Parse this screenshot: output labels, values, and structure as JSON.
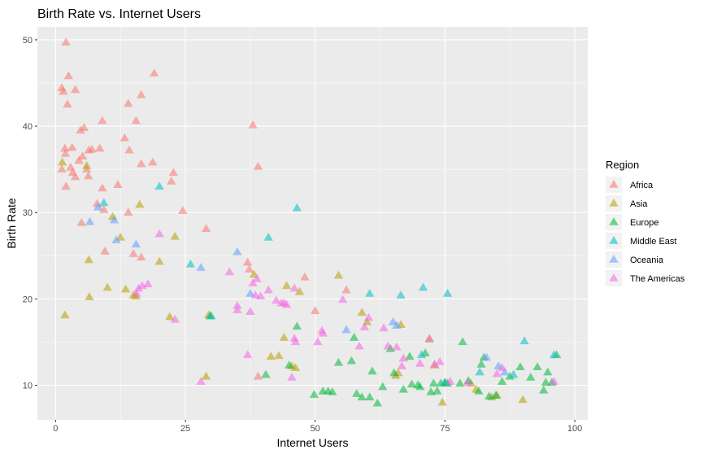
{
  "chart_data": {
    "type": "scatter",
    "title": "Birth Rate vs. Internet Users",
    "xlabel": "Internet Users",
    "ylabel": "Birth Rate",
    "xlim": [
      -3.5,
      102.5
    ],
    "ylim": [
      6,
      51.5
    ],
    "x_ticks": [
      0,
      25,
      50,
      75,
      100
    ],
    "y_ticks": [
      10,
      20,
      30,
      40,
      50
    ],
    "grid": true,
    "marker": "triangle",
    "legend": {
      "title": "Region",
      "placement": "right"
    },
    "series": [
      {
        "name": "Africa",
        "color": "#F8766D",
        "points": [
          [
            2,
            49.7
          ],
          [
            1.5,
            44
          ],
          [
            2.5,
            45.8
          ],
          [
            3.8,
            44.2
          ],
          [
            19,
            46.1
          ],
          [
            1.2,
            44.4
          ],
          [
            2.3,
            42.5
          ],
          [
            14,
            42.6
          ],
          [
            16.5,
            43.6
          ],
          [
            15.5,
            40.6
          ],
          [
            9,
            40.6
          ],
          [
            5.5,
            39.8
          ],
          [
            4.8,
            39.5
          ],
          [
            38,
            40.1
          ],
          [
            13.3,
            38.6
          ],
          [
            1.8,
            37.4
          ],
          [
            3.2,
            37.5
          ],
          [
            4.5,
            36
          ],
          [
            7,
            37.3
          ],
          [
            6.4,
            37.2
          ],
          [
            8.5,
            37.4
          ],
          [
            14.2,
            37.2
          ],
          [
            1.9,
            36.8
          ],
          [
            2.9,
            35.2
          ],
          [
            3.3,
            34.6
          ],
          [
            5.2,
            36.5
          ],
          [
            6,
            35
          ],
          [
            6.3,
            34.2
          ],
          [
            12,
            33.2
          ],
          [
            9,
            32.8
          ],
          [
            16.5,
            35.6
          ],
          [
            18.7,
            35.8
          ],
          [
            22.7,
            34.6
          ],
          [
            22.3,
            33.6
          ],
          [
            3.8,
            34.1
          ],
          [
            1.2,
            35
          ],
          [
            2,
            33
          ],
          [
            39,
            35.3
          ],
          [
            5,
            28.8
          ],
          [
            9.3,
            30.3
          ],
          [
            14,
            30
          ],
          [
            24.5,
            30.2
          ],
          [
            29,
            28.1
          ],
          [
            8,
            31
          ],
          [
            9.5,
            25.5
          ],
          [
            15,
            25.2
          ],
          [
            16.5,
            24.8
          ],
          [
            37,
            24.2
          ],
          [
            37.3,
            23.4
          ],
          [
            56,
            21
          ],
          [
            50,
            18.6
          ],
          [
            39,
            11
          ],
          [
            48,
            22.5
          ]
        ]
      },
      {
        "name": "Asia",
        "color": "#B79F00",
        "points": [
          [
            1.3,
            35.8
          ],
          [
            6,
            35.4
          ],
          [
            1.8,
            18.1
          ],
          [
            6.4,
            24.5
          ],
          [
            6.5,
            20.2
          ],
          [
            11,
            29.5
          ],
          [
            16.2,
            30.9
          ],
          [
            12.5,
            27.1
          ],
          [
            23,
            27.2
          ],
          [
            20,
            24.3
          ],
          [
            10,
            21.3
          ],
          [
            13.5,
            21.1
          ],
          [
            15,
            20.4
          ],
          [
            15.5,
            20.3
          ],
          [
            22,
            17.9
          ],
          [
            29.5,
            18.1
          ],
          [
            29,
            11
          ],
          [
            38.2,
            22.8
          ],
          [
            44.5,
            21.5
          ],
          [
            54.5,
            22.7
          ],
          [
            59,
            18.4
          ],
          [
            60,
            17.3
          ],
          [
            47,
            20.8
          ],
          [
            44,
            15.5
          ],
          [
            43,
            13.4
          ],
          [
            41.5,
            13.3
          ],
          [
            45.5,
            12.2
          ],
          [
            46.2,
            12
          ],
          [
            65.5,
            11.1
          ],
          [
            66,
            11.4
          ],
          [
            66.5,
            17
          ],
          [
            72,
            15.3
          ],
          [
            73,
            12.3
          ],
          [
            74.5,
            8
          ],
          [
            80,
            10.2
          ],
          [
            81,
            9.5
          ],
          [
            84,
            8.6
          ],
          [
            85,
            8.8
          ],
          [
            90,
            8.3
          ]
        ]
      },
      {
        "name": "Europe",
        "color": "#00BA38",
        "points": [
          [
            29.8,
            18
          ],
          [
            40.5,
            11.2
          ],
          [
            45,
            12.3
          ],
          [
            46.5,
            16.8
          ],
          [
            49.8,
            8.9
          ],
          [
            51.5,
            9.3
          ],
          [
            52.5,
            9.3
          ],
          [
            53.3,
            9.2
          ],
          [
            54.5,
            12.6
          ],
          [
            57,
            12.8
          ],
          [
            57.5,
            15.5
          ],
          [
            58,
            9
          ],
          [
            59,
            8.6
          ],
          [
            60.5,
            8.6
          ],
          [
            62,
            7.9
          ],
          [
            63,
            9.8
          ],
          [
            65.2,
            11.4
          ],
          [
            67,
            9.5
          ],
          [
            68.2,
            13.3
          ],
          [
            68.6,
            10.1
          ],
          [
            69.8,
            10
          ],
          [
            70.2,
            9.8
          ],
          [
            71.2,
            13.7
          ],
          [
            72.3,
            9.2
          ],
          [
            72.8,
            10.2
          ],
          [
            73.5,
            9.3
          ],
          [
            74.2,
            10.2
          ],
          [
            75,
            10.3
          ],
          [
            75.5,
            10.2
          ],
          [
            77.9,
            10.2
          ],
          [
            78.4,
            15
          ],
          [
            79.5,
            10.5
          ],
          [
            81.5,
            9.3
          ],
          [
            82,
            12.4
          ],
          [
            82.5,
            13.2
          ],
          [
            83.5,
            8.7
          ],
          [
            84.8,
            8.8
          ],
          [
            86,
            10.4
          ],
          [
            87.5,
            11
          ],
          [
            89.5,
            12.1
          ],
          [
            91.5,
            10.9
          ],
          [
            92.8,
            12.1
          ],
          [
            94,
            9.4
          ],
          [
            94.4,
            10.3
          ],
          [
            94.8,
            11.5
          ],
          [
            95.6,
            10.3
          ],
          [
            96.5,
            13.5
          ],
          [
            64.5,
            14.2
          ],
          [
            61,
            11.6
          ]
        ]
      },
      {
        "name": "Middle East",
        "color": "#00BFC4",
        "points": [
          [
            9.3,
            31.1
          ],
          [
            20,
            33
          ],
          [
            26,
            24
          ],
          [
            30,
            18
          ],
          [
            41,
            27.1
          ],
          [
            46.5,
            30.5
          ],
          [
            60.5,
            20.6
          ],
          [
            66.5,
            20.4
          ],
          [
            70.8,
            21.3
          ],
          [
            75.5,
            20.6
          ],
          [
            70.5,
            13.5
          ],
          [
            75,
            10.3
          ],
          [
            81.7,
            11.5
          ],
          [
            88.2,
            11.2
          ],
          [
            90.3,
            15.1
          ],
          [
            96,
            13.5
          ]
        ]
      },
      {
        "name": "Oceania",
        "color": "#619CFF",
        "points": [
          [
            8.2,
            30.6
          ],
          [
            11.3,
            29.1
          ],
          [
            6.6,
            28.9
          ],
          [
            11.7,
            26.8
          ],
          [
            15.5,
            26.3
          ],
          [
            28,
            23.6
          ],
          [
            35,
            25.4
          ],
          [
            37.5,
            20.6
          ],
          [
            56,
            16.4
          ],
          [
            65,
            17.3
          ],
          [
            65.7,
            16.9
          ],
          [
            83,
            13.2
          ],
          [
            85.3,
            12.2
          ],
          [
            86.5,
            11.5
          ]
        ]
      },
      {
        "name": "The Americas",
        "color": "#F564E3",
        "points": [
          [
            20,
            27.5
          ],
          [
            16,
            21.2
          ],
          [
            16.7,
            21.5
          ],
          [
            17.8,
            21.7
          ],
          [
            15.6,
            20.6
          ],
          [
            23,
            17.6
          ],
          [
            28,
            10.4
          ],
          [
            33.5,
            23.1
          ],
          [
            35,
            19.2
          ],
          [
            35,
            18.7
          ],
          [
            37.5,
            18.5
          ],
          [
            38,
            21.8
          ],
          [
            38.8,
            22.3
          ],
          [
            38.5,
            20.4
          ],
          [
            39.5,
            20.3
          ],
          [
            41,
            21
          ],
          [
            42.5,
            19.8
          ],
          [
            43.5,
            19.5
          ],
          [
            44.5,
            19.3
          ],
          [
            44,
            19.5
          ],
          [
            46,
            21.2
          ],
          [
            46,
            15.4
          ],
          [
            46.2,
            15
          ],
          [
            45.5,
            10.9
          ],
          [
            37,
            13.5
          ],
          [
            50.5,
            15
          ],
          [
            51.3,
            16.3
          ],
          [
            51.5,
            16
          ],
          [
            55.3,
            19.9
          ],
          [
            58.5,
            14.5
          ],
          [
            59.5,
            16.7
          ],
          [
            60.3,
            17.8
          ],
          [
            63.2,
            16.6
          ],
          [
            64,
            14.5
          ],
          [
            65.7,
            14.4
          ],
          [
            67,
            13.1
          ],
          [
            66.7,
            12.2
          ],
          [
            70.2,
            12.5
          ],
          [
            72,
            15.4
          ],
          [
            73,
            12.4
          ],
          [
            74,
            12.7
          ],
          [
            76,
            10.4
          ],
          [
            79.4,
            10.3
          ],
          [
            85,
            11.3
          ],
          [
            86,
            12
          ],
          [
            96,
            10.4
          ]
        ]
      }
    ]
  }
}
